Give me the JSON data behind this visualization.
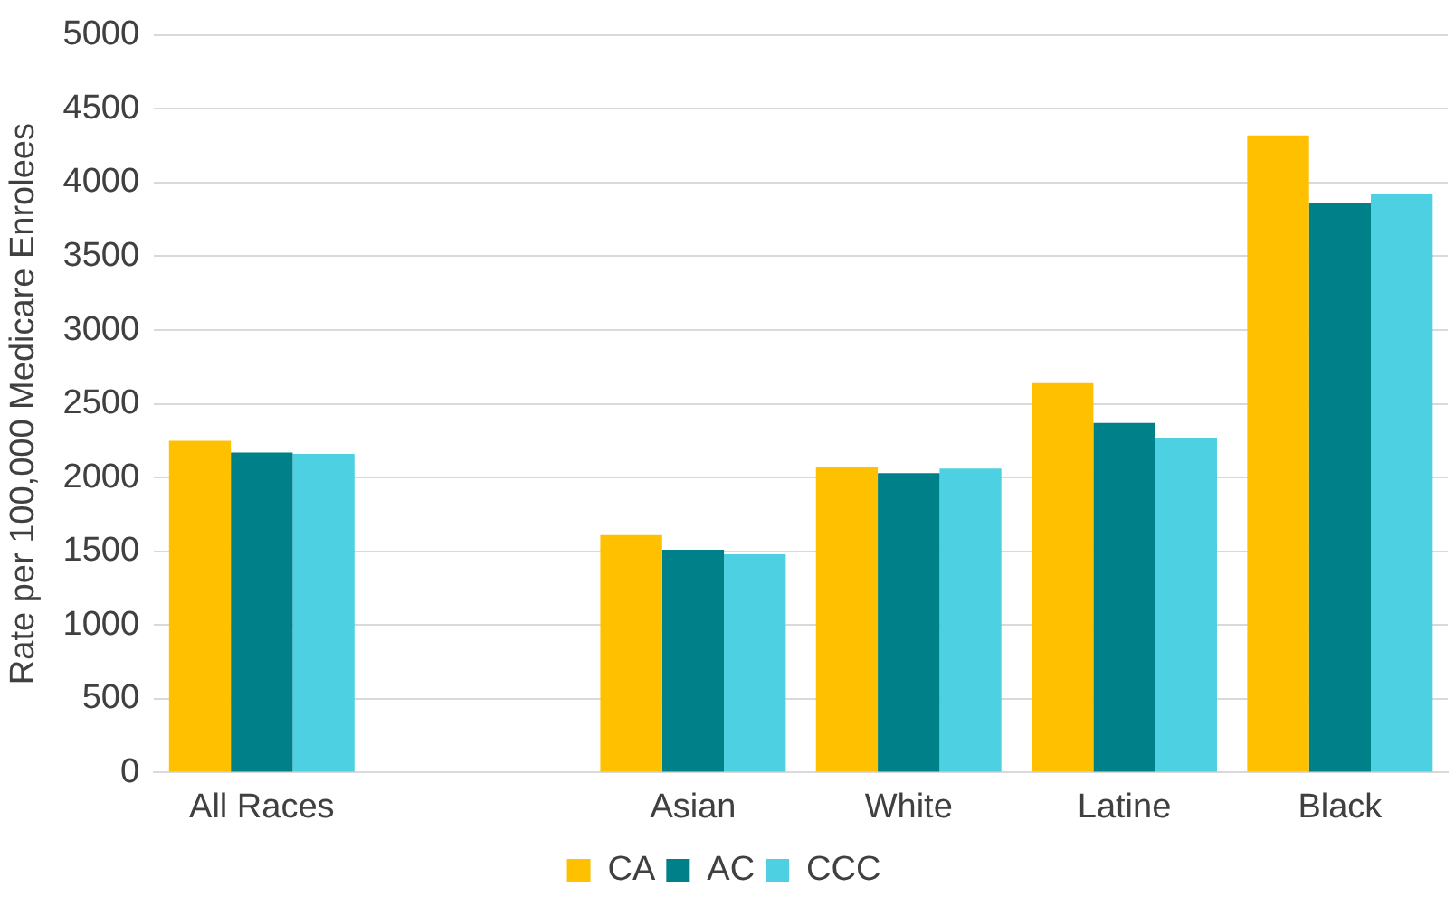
{
  "chart_data": {
    "type": "bar",
    "ylabel": "Rate per 100,000 Medicare Enrolees",
    "categories": [
      "All Races",
      null,
      "Asian",
      "White",
      "Latine",
      "Black"
    ],
    "series": [
      {
        "name": "CA",
        "color": "#ffc000",
        "values": [
          2250,
          null,
          1610,
          2070,
          2640,
          4320
        ]
      },
      {
        "name": "AC",
        "color": "#00818a",
        "values": [
          2170,
          null,
          1510,
          2030,
          2370,
          3860
        ]
      },
      {
        "name": "CCC",
        "color": "#4dd0e1",
        "values": [
          2160,
          null,
          1480,
          2060,
          2270,
          3920
        ]
      }
    ],
    "ylim": [
      0,
      5000
    ],
    "yticks": [
      0,
      500,
      1000,
      1500,
      2000,
      2500,
      3000,
      3500,
      4000,
      4500,
      5000
    ],
    "grid": "y",
    "legend": "bottom"
  }
}
